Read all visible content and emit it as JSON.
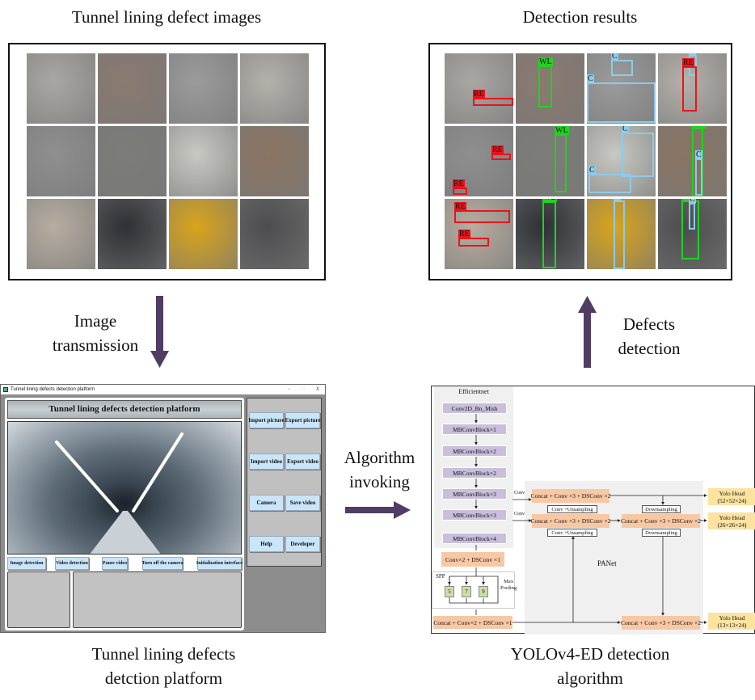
{
  "captions": {
    "defect_images": "Tunnel lining defect images",
    "detection_results": "Detection results",
    "image_transmission": [
      "Image",
      "transmission"
    ],
    "defects_detection": [
      "Defects",
      "detection"
    ],
    "algorithm_invoking": [
      "Algorithm",
      "invoking"
    ],
    "platform": [
      "Tunnel lining defects",
      "detction platform"
    ],
    "algorithm": [
      "YOLOv4-ED detection",
      "algorithm"
    ]
  },
  "colors": {
    "arrow": "#4f3d63",
    "RE": "#e8141c",
    "WL": "#1ed41e",
    "C": "#8ccbea"
  },
  "tiles": [
    "#a9a7a2",
    "#8a7a70",
    "#9b9b9b",
    "#b5b1ab",
    "#8f8f8f",
    "#7c7c78",
    "#c9c9c3",
    "#8a7462",
    "#b7ada0",
    "#2e3035",
    "#d9a41a",
    "#4d4d4f"
  ],
  "detections": [
    [
      {
        "label": "RE"
      }
    ],
    [
      {
        "label": "WL"
      }
    ],
    [
      {
        "label": "C"
      },
      {
        "label": "C"
      }
    ],
    [
      {
        "label": "C"
      },
      {
        "label": "RE"
      }
    ],
    [
      {
        "label": "RE"
      },
      {
        "label": "RE"
      }
    ],
    [
      {
        "label": "WL"
      }
    ],
    [
      {
        "label": "C"
      },
      {
        "label": "C"
      }
    ],
    [
      {
        "label": "WL"
      },
      {
        "label": "C"
      }
    ],
    [
      {
        "label": "RE"
      },
      {
        "label": "RE"
      }
    ],
    [
      {
        "label": "WL"
      }
    ],
    [
      {
        "label": "C"
      }
    ],
    [
      {
        "label": "W"
      },
      {
        "label": "C"
      }
    ]
  ],
  "platform": {
    "window_title": "Tunnel lining defects detection platform",
    "window_controls": [
      "−",
      "□",
      "X"
    ],
    "header": "Tunnel lining defects detection platform",
    "bottom_buttons": [
      "Image detection",
      "Video detection",
      "Pause video",
      "Turn off the camera",
      "Initialization interface"
    ],
    "side_buttons": [
      "Import picture",
      "Export picture",
      "Import video",
      "Export video",
      "Camera",
      "Save video",
      "Help",
      "Developer"
    ]
  },
  "algorithm": {
    "backbone_title": "Efficientnet",
    "backbone": [
      "Conv2D_Bn_Mish",
      "MBConvBlock×1",
      "MBConvBlock×2",
      "MBConvBlock×2",
      "MBConvBlock×3",
      "MBConvBlock×3",
      "MBConvBlock×4"
    ],
    "conv_ds": "Conv×2 + DSConv ×1",
    "spp_title": "SPP",
    "spp_kernels": [
      "5",
      "7",
      "9"
    ],
    "max_pooling": [
      "Max",
      "Pooling"
    ],
    "concat_bottom": "Concat + Conv×2 + DSConv ×1",
    "conv_label": "Conv",
    "concat": "Concat + Conv ×3 + DSConv ×2",
    "upsampling": "Conv +Unsampling",
    "downsampling": "Downsampling",
    "panet": "PANet",
    "heads": [
      [
        "Yolo Head",
        "(52×52×24)"
      ],
      [
        "Yolo Head",
        "(26×26×24)"
      ],
      [
        "Yolo Head",
        "(13×13×24)"
      ]
    ]
  }
}
